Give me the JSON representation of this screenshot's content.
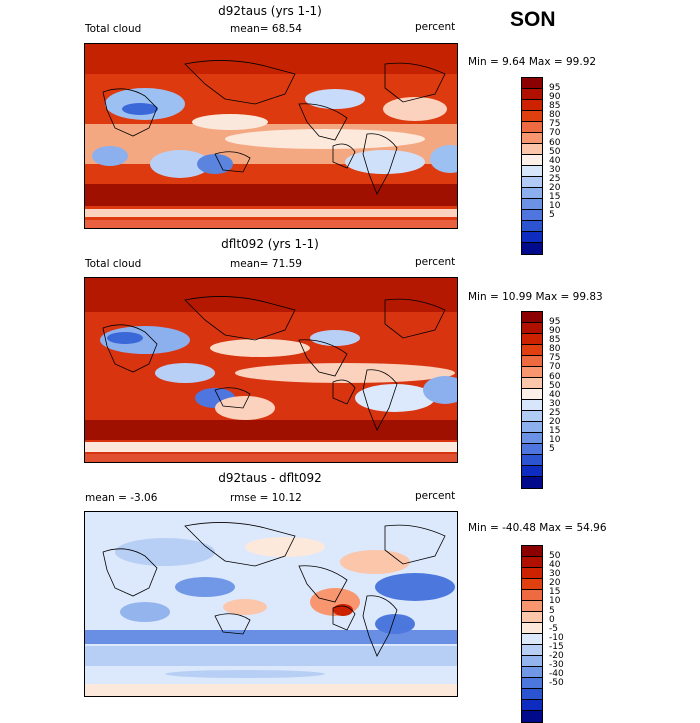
{
  "season": "SON",
  "panels": [
    {
      "title": "d92taus (yrs 1-1)",
      "left_label": "Total cloud",
      "mid_label": "mean=  68.54",
      "right_label": "percent",
      "minmax": "Min =   9.64 Max =  99.92",
      "colorbar": {
        "labels": [
          "95",
          "90",
          "85",
          "80",
          "75",
          "70",
          "60",
          "50",
          "40",
          "30",
          "25",
          "20",
          "15",
          "10",
          "5"
        ],
        "colors": [
          "#8b0000",
          "#b01000",
          "#cc2200",
          "#e04010",
          "#ee6a40",
          "#f89670",
          "#fbc6aa",
          "#fdf0e8",
          "#d8e6fb",
          "#b0cbf4",
          "#8cafee",
          "#6c92e6",
          "#4e76de",
          "#2c54d0",
          "#0e2cc0",
          "#000a8a"
        ]
      }
    },
    {
      "title": "dflt092 (yrs 1-1)",
      "left_label": "Total cloud",
      "mid_label": "mean=  71.59",
      "right_label": "percent",
      "minmax": "Min =  10.99 Max =  99.83",
      "colorbar": {
        "labels": [
          "95",
          "90",
          "85",
          "80",
          "75",
          "70",
          "60",
          "50",
          "40",
          "30",
          "25",
          "20",
          "15",
          "10",
          "5"
        ],
        "colors": [
          "#8b0000",
          "#b01000",
          "#cc2200",
          "#e04010",
          "#ee6a40",
          "#f89670",
          "#fbc6aa",
          "#fdf0e8",
          "#d8e6fb",
          "#b0cbf4",
          "#8cafee",
          "#6c92e6",
          "#4e76de",
          "#2c54d0",
          "#0e2cc0",
          "#000a8a"
        ]
      }
    },
    {
      "title": "d92taus - dflt092",
      "left_label": "mean =  -3.06",
      "mid_label": "rmse =  10.12",
      "right_label": "percent",
      "minmax": "Min = -40.48 Max =  54.96",
      "colorbar": {
        "labels": [
          "50",
          "40",
          "30",
          "20",
          "15",
          "10",
          "5",
          "0",
          "-5",
          "-10",
          "-15",
          "-20",
          "-30",
          "-40",
          "-50"
        ],
        "colors": [
          "#8b0000",
          "#b01000",
          "#cc2200",
          "#e04010",
          "#ee6a40",
          "#f89670",
          "#fbc6aa",
          "#fde8dc",
          "#dce8fb",
          "#b8cff5",
          "#94b4ee",
          "#7098e6",
          "#4c78de",
          "#2a54d0",
          "#0e2cc0",
          "#000a8a"
        ]
      }
    }
  ]
}
